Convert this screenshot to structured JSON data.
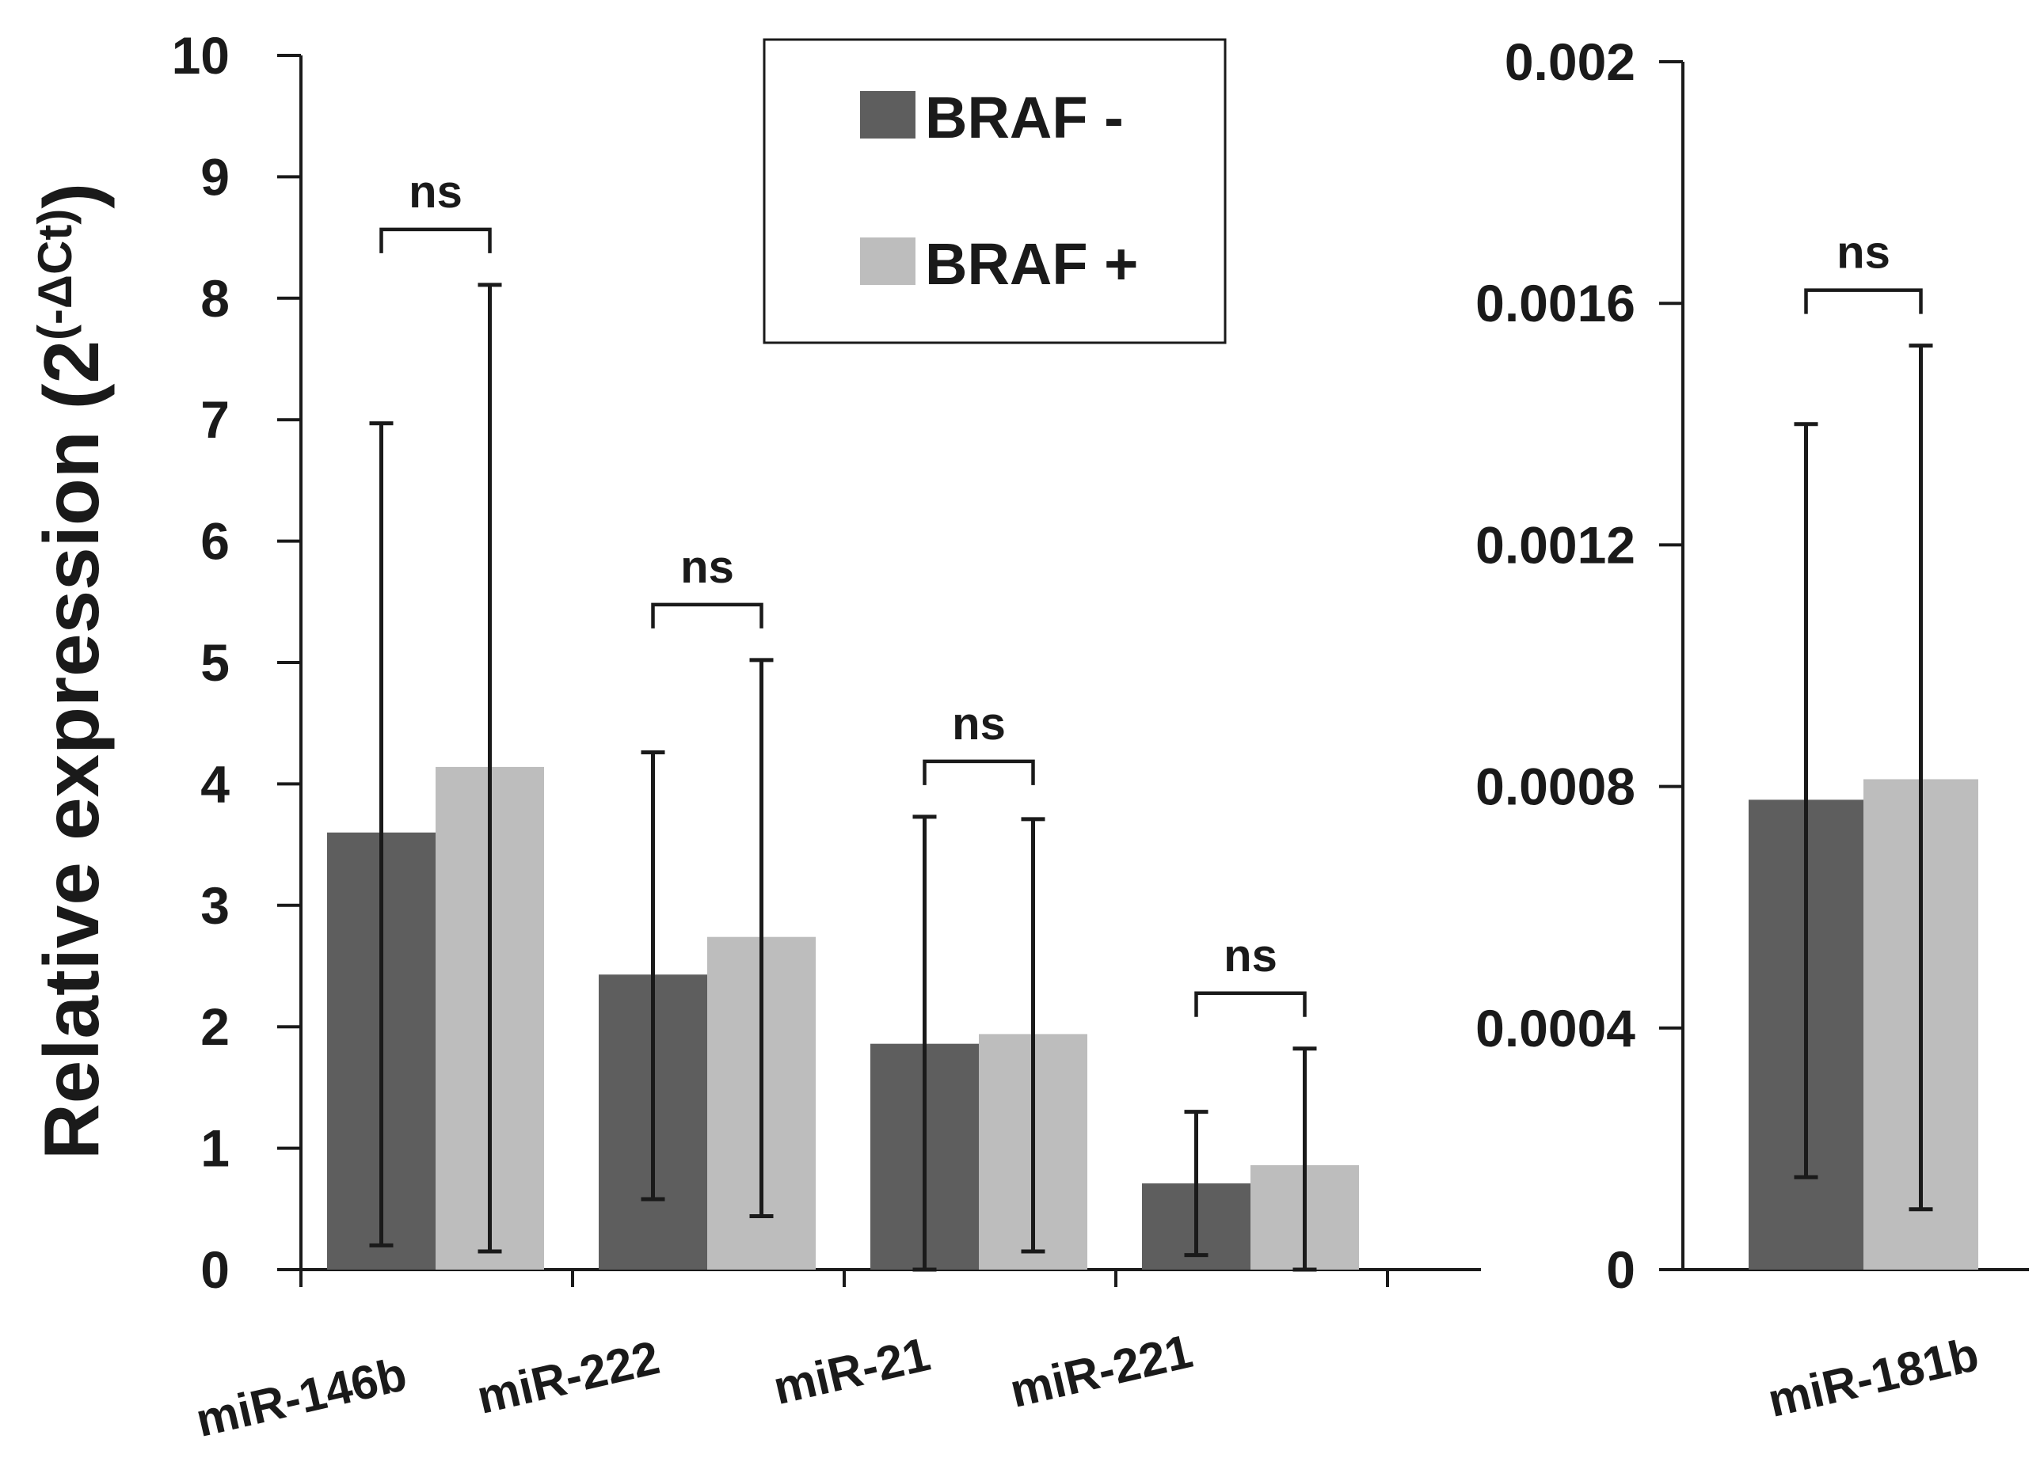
{
  "chart_data": [
    {
      "type": "bar",
      "panel": "left",
      "ylabel": "Relative expression (2",
      "ylabel_superscript": "(-ΔCt)",
      "ylim": [
        0,
        10
      ],
      "yticks": [
        "0",
        "1",
        "2",
        "3",
        "4",
        "5",
        "6",
        "7",
        "8",
        "9",
        "10"
      ],
      "categories": [
        "miR-146b",
        "miR-222",
        "miR-21",
        "miR-221"
      ],
      "series": [
        {
          "name": "BRAF -",
          "color": "#5e5e5e",
          "values": [
            3.6,
            2.43,
            1.86,
            0.71
          ],
          "err_low": [
            0.2,
            0.58,
            0.0,
            0.12
          ],
          "err_high": [
            6.97,
            4.26,
            3.73,
            1.3
          ]
        },
        {
          "name": "BRAF +",
          "color": "#bdbdbd",
          "values": [
            4.14,
            2.74,
            1.94,
            0.86
          ],
          "err_low": [
            0.15,
            0.44,
            0.15,
            0.0
          ],
          "err_high": [
            8.11,
            5.02,
            3.71,
            1.82
          ]
        }
      ],
      "significance": [
        "ns",
        "ns",
        "ns",
        "ns"
      ]
    },
    {
      "type": "bar",
      "panel": "right",
      "ylim": [
        0,
        0.002
      ],
      "yticks": [
        "0",
        "0.0004",
        "0.0008",
        "0.0012",
        "0.0016",
        "0.002"
      ],
      "categories": [
        "miR-181b"
      ],
      "series": [
        {
          "name": "BRAF -",
          "color": "#5e5e5e",
          "values": [
            0.000778
          ],
          "err_low": [
            0.000153
          ],
          "err_high": [
            0.0014
          ]
        },
        {
          "name": "BRAF +",
          "color": "#bdbdbd",
          "values": [
            0.000812
          ],
          "err_low": [
            0.0001
          ],
          "err_high": [
            0.00153
          ]
        }
      ],
      "significance": [
        "ns"
      ]
    }
  ],
  "legend": {
    "position": "top-center",
    "items": [
      {
        "label": "BRAF -",
        "color": "#5e5e5e"
      },
      {
        "label": "BRAF +",
        "color": "#bdbdbd"
      }
    ]
  }
}
